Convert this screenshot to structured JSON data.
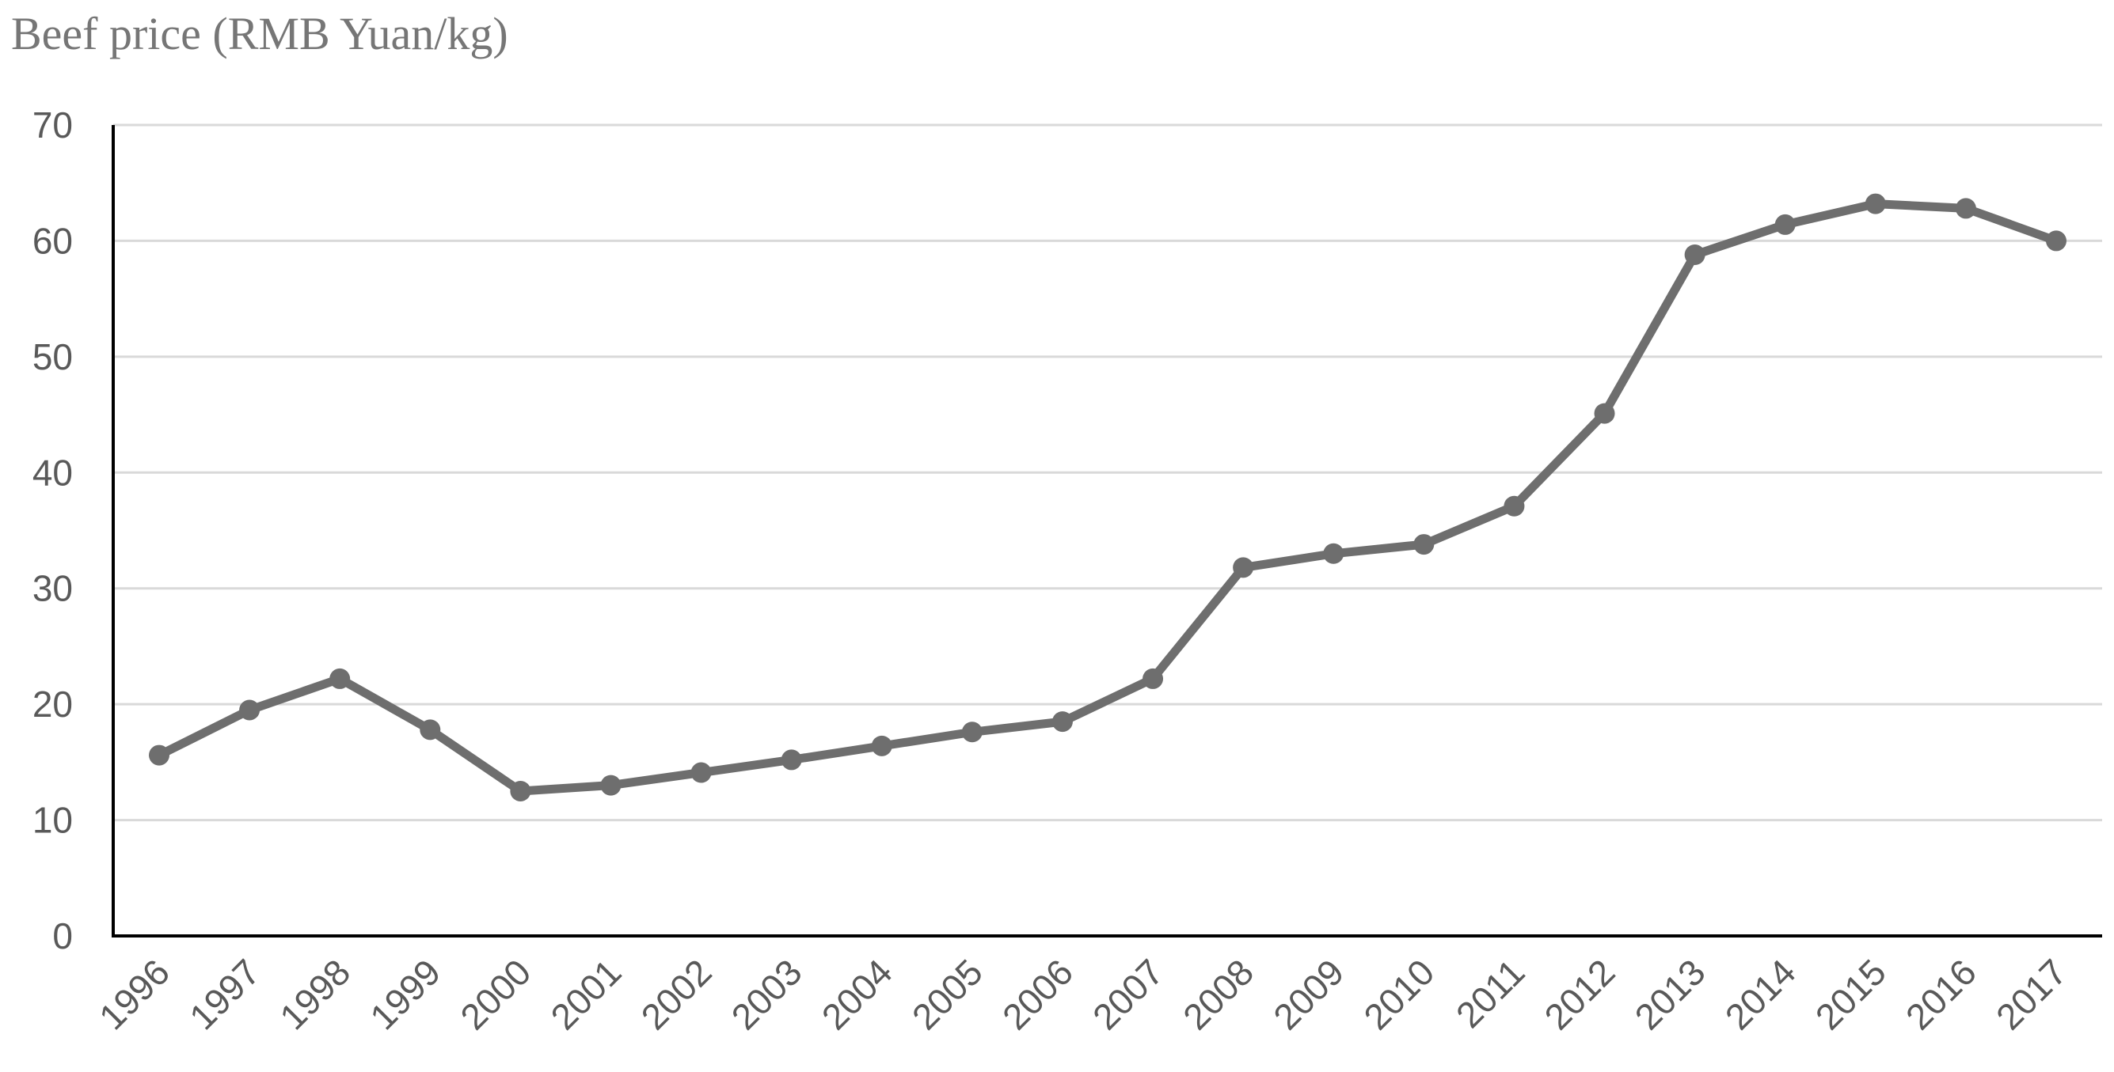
{
  "chart_data": {
    "type": "line",
    "ylabel": "Beef price (RMB Yuan/kg)",
    "xlabel": "",
    "ylim": [
      0,
      70
    ],
    "yticks": [
      "0",
      "10",
      "20",
      "30",
      "40",
      "50",
      "60",
      "70"
    ],
    "grid": true,
    "legend": "none",
    "x": [
      "1996",
      "1997",
      "1998",
      "1999",
      "2000",
      "2001",
      "2002",
      "2003",
      "2004",
      "2005",
      "2006",
      "2007",
      "2008",
      "2009",
      "2010",
      "2011",
      "2012",
      "2013",
      "2014",
      "2015",
      "2016",
      "2017"
    ],
    "series": [
      {
        "values": [
          15.6,
          19.5,
          22.2,
          17.8,
          12.5,
          13.0,
          14.1,
          15.2,
          16.4,
          17.6,
          18.5,
          22.2,
          31.8,
          33.0,
          33.8,
          37.1,
          45.1,
          58.8,
          61.4,
          63.2,
          62.8,
          60.0
        ]
      }
    ],
    "colors": {
      "series": "#6e6e6e",
      "grid": "#d9d9d9",
      "axis": "#000000",
      "tick_text": "#595959",
      "title_text": "#767676"
    }
  }
}
